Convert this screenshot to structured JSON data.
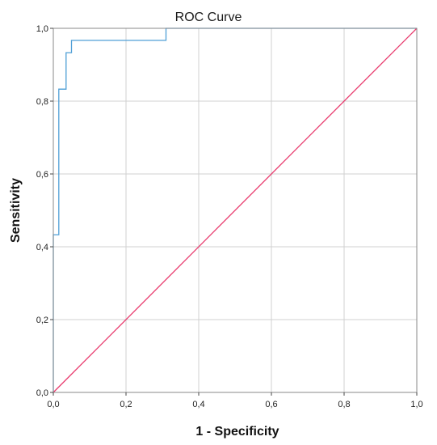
{
  "chart_data": {
    "type": "line",
    "title": "ROC Curve",
    "xlabel": "1 - Specificity",
    "ylabel": "Sensitivity",
    "xlim": [
      0,
      1
    ],
    "ylim": [
      0,
      1
    ],
    "grid": true,
    "x_ticks": [
      "0,0",
      "0,2",
      "0,4",
      "0,6",
      "0,8",
      "1,0"
    ],
    "y_ticks": [
      "0,0",
      "0,2",
      "0,4",
      "0,6",
      "0,8",
      "1,0"
    ],
    "series": [
      {
        "color": "#4f9fd6",
        "step": true,
        "x": [
          0.0,
          0.0,
          0.015,
          0.015,
          0.035,
          0.035,
          0.05,
          0.05,
          0.31,
          0.31,
          1.0
        ],
        "y": [
          0.0,
          0.433,
          0.433,
          0.833,
          0.833,
          0.933,
          0.933,
          0.967,
          0.967,
          1.0,
          1.0
        ]
      },
      {
        "color": "#e8386c",
        "step": false,
        "x": [
          0.0,
          1.0
        ],
        "y": [
          0.0,
          1.0
        ]
      }
    ]
  }
}
